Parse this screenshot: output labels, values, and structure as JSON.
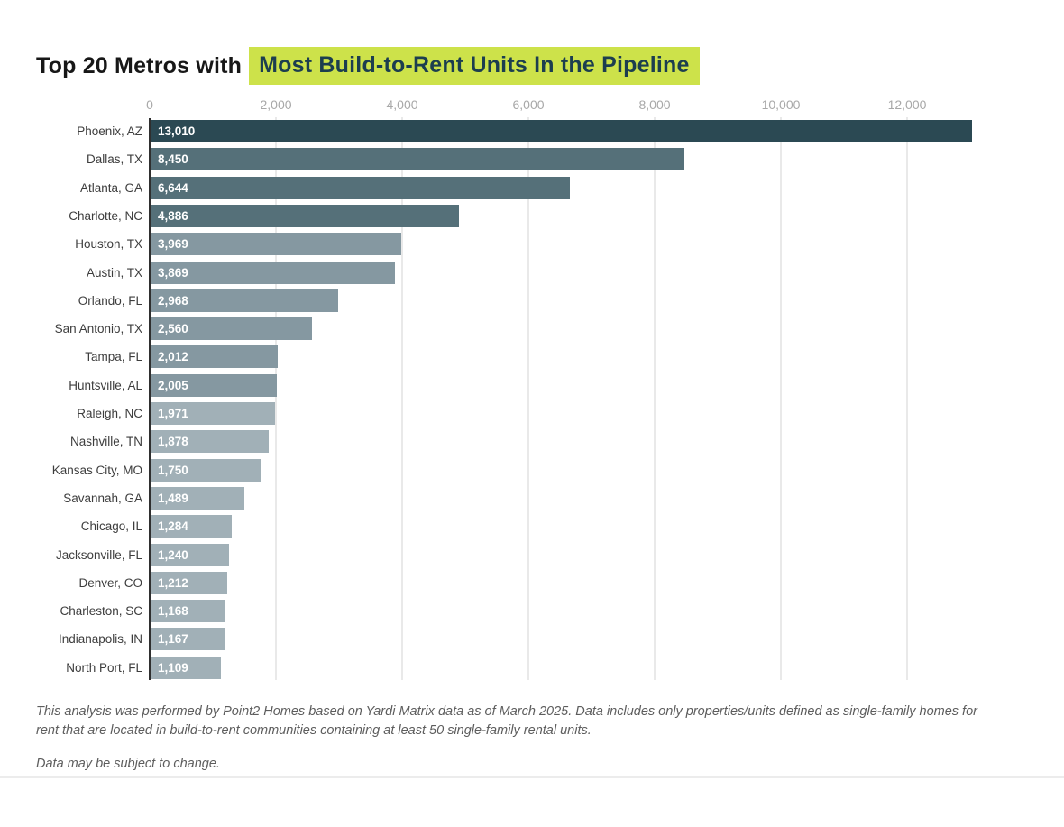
{
  "title": {
    "prefix": "Top 20 Metros with",
    "highlight": "Most Build-to-Rent Units In the Pipeline"
  },
  "colors": {
    "title_text": "#171717",
    "highlight_bg": "#cde24a",
    "highlight_text": "#1c3e4f",
    "tick_label": "#a8a8a8",
    "category_label": "#3d3d3d",
    "bar_value_label": "#ffffff",
    "gridline": "#e9e9e9",
    "axis_line": "#2f2f2f",
    "tier_dark": "#2b4953",
    "tier_medium_dark": "#557079",
    "tier_medium": "#8598a1",
    "tier_light": "#a1b0b7"
  },
  "chart_data": {
    "type": "bar",
    "orientation": "horizontal",
    "title": "Top 20 Metros with Most Build-to-Rent Units In the Pipeline",
    "xlabel": "",
    "ylabel": "",
    "grid": "vertical",
    "value_labels_inside_bars": true,
    "x_axis": {
      "range": [
        0,
        13100
      ],
      "ticks": [
        0,
        2000,
        4000,
        6000,
        8000,
        10000,
        12000
      ],
      "tick_labels": [
        "0",
        "2,000",
        "4,000",
        "6,000",
        "8,000",
        "10,000",
        "12,000"
      ]
    },
    "bars": [
      {
        "label": "Phoenix, AZ",
        "value": 13010,
        "value_label": "13,010",
        "color": "#2b4953"
      },
      {
        "label": "Dallas, TX",
        "value": 8450,
        "value_label": "8,450",
        "color": "#557079"
      },
      {
        "label": "Atlanta, GA",
        "value": 6644,
        "value_label": "6,644",
        "color": "#557079"
      },
      {
        "label": "Charlotte, NC",
        "value": 4886,
        "value_label": "4,886",
        "color": "#557079"
      },
      {
        "label": "Houston, TX",
        "value": 3969,
        "value_label": "3,969",
        "color": "#8598a1"
      },
      {
        "label": "Austin, TX",
        "value": 3869,
        "value_label": "3,869",
        "color": "#8598a1"
      },
      {
        "label": "Orlando, FL",
        "value": 2968,
        "value_label": "2,968",
        "color": "#8598a1"
      },
      {
        "label": "San Antonio, TX",
        "value": 2560,
        "value_label": "2,560",
        "color": "#8598a1"
      },
      {
        "label": "Tampa, FL",
        "value": 2012,
        "value_label": "2,012",
        "color": "#8598a1"
      },
      {
        "label": "Huntsville, AL",
        "value": 2005,
        "value_label": "2,005",
        "color": "#8598a1"
      },
      {
        "label": "Raleigh, NC",
        "value": 1971,
        "value_label": "1,971",
        "color": "#a1b0b7"
      },
      {
        "label": "Nashville, TN",
        "value": 1878,
        "value_label": "1,878",
        "color": "#a1b0b7"
      },
      {
        "label": "Kansas City, MO",
        "value": 1750,
        "value_label": "1,750",
        "color": "#a1b0b7"
      },
      {
        "label": "Savannah, GA",
        "value": 1489,
        "value_label": "1,489",
        "color": "#a1b0b7"
      },
      {
        "label": "Chicago, IL",
        "value": 1284,
        "value_label": "1,284",
        "color": "#a1b0b7"
      },
      {
        "label": "Jacksonville, FL",
        "value": 1240,
        "value_label": "1,240",
        "color": "#a1b0b7"
      },
      {
        "label": "Denver, CO",
        "value": 1212,
        "value_label": "1,212",
        "color": "#a1b0b7"
      },
      {
        "label": "Charleston, SC",
        "value": 1168,
        "value_label": "1,168",
        "color": "#a1b0b7"
      },
      {
        "label": "Indianapolis, IN",
        "value": 1167,
        "value_label": "1,167",
        "color": "#a1b0b7"
      },
      {
        "label": "North Port, FL",
        "value": 1109,
        "value_label": "1,109",
        "color": "#a1b0b7"
      }
    ]
  },
  "footnotes": {
    "methodology": "This analysis was performed by Point2 Homes based on Yardi Matrix data as of March 2025. Data includes only properties/units defined as single-family homes for rent that are located in build-to-rent communities containing at least 50 single-family rental units.",
    "disclaimer": "Data may be subject to change."
  }
}
